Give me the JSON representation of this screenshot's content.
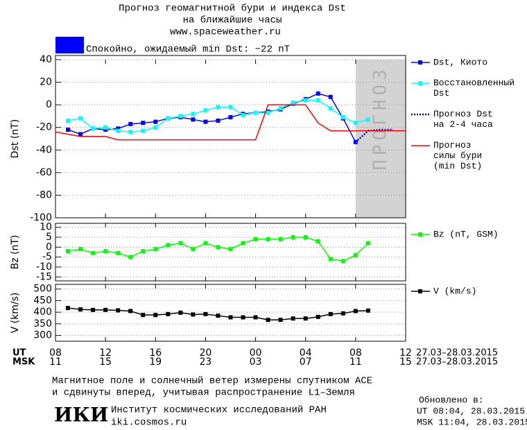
{
  "header": {
    "title": [
      "Прогноз геомагнитной бури и индекса Dst",
      "на ближайшие часы"
    ],
    "url": "www.spaceweather.ru",
    "status": "Спокойно, ожидаемый min Dst: −22 nT",
    "status_color": "#0000ff"
  },
  "chart_data": [
    {
      "type": "line",
      "ylabel": "Dst (nT)",
      "ylim": [
        -100,
        40
      ],
      "yticks": [
        40,
        20,
        0,
        -20,
        -40,
        -60,
        -80,
        -100
      ],
      "grid": true,
      "xlim": [
        0,
        28
      ],
      "forecast_region": {
        "x": [
          24,
          28
        ],
        "label": "ПРОГНОЗ",
        "color": "#d3d3d3"
      },
      "series": [
        {
          "name": "Dst, Киото",
          "color": "#0000ff",
          "marker": "square",
          "x": [
            1,
            2,
            3,
            4,
            5,
            6,
            7,
            8,
            9,
            10,
            11,
            12,
            13,
            14,
            15,
            16,
            17,
            18,
            19,
            20,
            21,
            22,
            23,
            24
          ],
          "values": [
            -22,
            -26,
            -21,
            -22,
            -21,
            -17,
            -16,
            -15,
            -12,
            -11,
            -13,
            -15,
            -14,
            -11,
            -8,
            -7,
            -6,
            -4,
            1,
            5,
            10,
            7,
            -12,
            -33
          ]
        },
        {
          "name": "Восстановленный\nDst",
          "color": "#00ffff",
          "marker": "square",
          "x": [
            1,
            2,
            3,
            4,
            5,
            6,
            7,
            8,
            9,
            10,
            11,
            12,
            13,
            14,
            15,
            16,
            17,
            18,
            19,
            20,
            21,
            22,
            23,
            24,
            25
          ],
          "values": [
            -14,
            -12,
            -21,
            -20,
            -23,
            -24,
            -23,
            -20,
            -12,
            -10,
            -8,
            -5,
            -2,
            -2,
            -9,
            -7,
            -7,
            -3,
            2,
            4,
            4,
            -3,
            -11,
            -16,
            -13
          ]
        },
        {
          "name": "Прогноз Dst\nна 2-4 часа",
          "color": "#0000cc",
          "style": "dotted",
          "x": [
            24,
            25,
            26,
            27
          ],
          "values": [
            -33,
            -23,
            -22,
            -22
          ]
        },
        {
          "name": "Прогноз\nсилы бури\n(min Dst)",
          "color": "#ff0000",
          "x": [
            0,
            2,
            4,
            5,
            16,
            17,
            20,
            21,
            22,
            28
          ],
          "values": [
            -24,
            -28,
            -28,
            -31,
            -31,
            0,
            0,
            -16,
            -23,
            -23
          ]
        }
      ]
    },
    {
      "type": "line",
      "ylabel": "Bz (nT)",
      "ylim": [
        -17,
        12
      ],
      "yticks": [
        10,
        5,
        0,
        -5,
        -10,
        -15
      ],
      "grid": true,
      "xlim": [
        0,
        28
      ],
      "series": [
        {
          "name": "Bz (nT, GSM)",
          "color": "#00ff00",
          "marker": "square",
          "x": [
            1,
            2,
            3,
            4,
            5,
            6,
            7,
            8,
            9,
            10,
            11,
            12,
            13,
            14,
            15,
            16,
            17,
            18,
            19,
            20,
            21,
            22,
            23,
            24,
            25
          ],
          "values": [
            -2,
            -1,
            -3,
            -2,
            -3,
            -5,
            -2,
            -1,
            1,
            2,
            -1,
            2,
            0,
            -1,
            2,
            4,
            4,
            4,
            5,
            5,
            3,
            -6,
            -7,
            -4,
            2
          ]
        }
      ]
    },
    {
      "type": "line",
      "ylabel": "V (km/s)",
      "ylim": [
        275,
        520
      ],
      "yticks": [
        500,
        450,
        400,
        350,
        300
      ],
      "grid": true,
      "xlim": [
        0,
        28
      ],
      "series": [
        {
          "name": "V (km/s)",
          "color": "#000000",
          "marker": "square",
          "x": [
            1,
            2,
            3,
            4,
            5,
            6,
            7,
            8,
            9,
            10,
            11,
            12,
            13,
            14,
            15,
            16,
            17,
            18,
            19,
            20,
            21,
            22,
            23,
            24,
            25
          ],
          "values": [
            418,
            412,
            410,
            410,
            408,
            405,
            388,
            388,
            392,
            398,
            390,
            392,
            385,
            378,
            378,
            378,
            367,
            367,
            373,
            373,
            380,
            392,
            395,
            405,
            407
          ]
        }
      ],
      "xlabel": "UT",
      "xlabel_msk": "MSK",
      "x_range": "27.03–28.03.2015",
      "x_range_msk": "27.03–28.03.2015",
      "xticks": [
        {
          "value": 0,
          "label": "08"
        },
        {
          "value": 4,
          "label": "12"
        },
        {
          "value": 8,
          "label": "16"
        },
        {
          "value": 12,
          "label": "20"
        },
        {
          "value": 16,
          "label": "00"
        },
        {
          "value": 20,
          "label": "04"
        },
        {
          "value": 24,
          "label": "08"
        },
        {
          "value": 28,
          "label": "12"
        }
      ],
      "xticks_msk": [
        {
          "value": 0,
          "label": "11"
        },
        {
          "value": 4,
          "label": "15"
        },
        {
          "value": 8,
          "label": "19"
        },
        {
          "value": 12,
          "label": "23"
        },
        {
          "value": 16,
          "label": "03"
        },
        {
          "value": 20,
          "label": "07"
        },
        {
          "value": 24,
          "label": "11"
        },
        {
          "value": 28,
          "label": "15"
        }
      ]
    }
  ],
  "footer": {
    "note": [
      "Магнитное поле и солнечный ветер измерены спутником ACE",
      "и сдвинуты вперед, учитывая распространение L1–Земля"
    ],
    "logo": "ИКИ",
    "institute": "Институт космических исследований РАН",
    "site": "iki.cosmos.ru",
    "updated": "Обновлено в:",
    "updated_ut": "UT   08:04, 28.03.2015",
    "updated_msk": "MSK 11:04, 28.03.2015"
  }
}
